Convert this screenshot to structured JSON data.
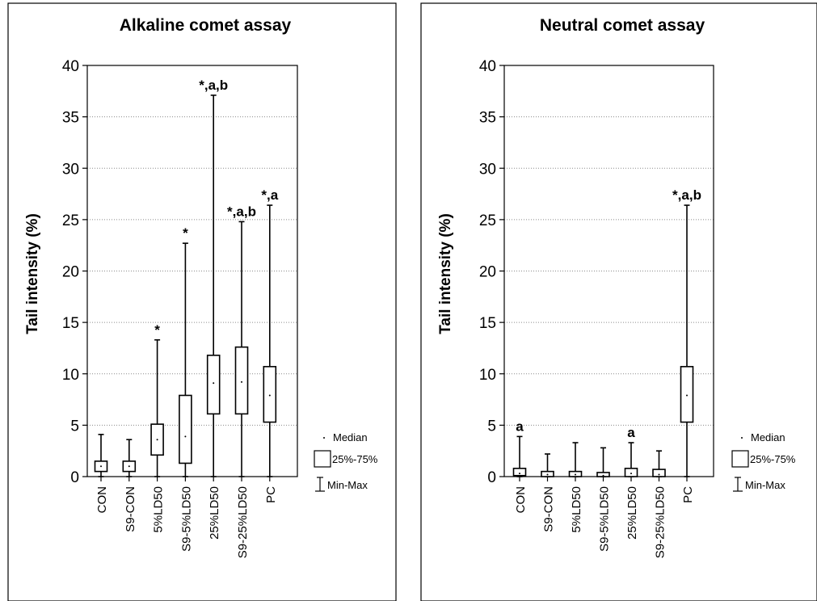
{
  "chart_data": [
    {
      "type": "box",
      "title": "Alkaline comet assay",
      "ylabel": "Tail intensity (%)",
      "ylim": [
        0,
        40
      ],
      "yticks": [
        0,
        5,
        10,
        15,
        20,
        25,
        30,
        35,
        40
      ],
      "grid": true,
      "categories": [
        "CON",
        "S9-CON",
        "5%LD50",
        "S9-5%LD50",
        "25%LD50",
        "S9-25%LD50",
        "PC"
      ],
      "boxes": [
        {
          "min": 0.0,
          "q1": 0.5,
          "median": 1.0,
          "q3": 1.5,
          "max": 4.1
        },
        {
          "min": 0.0,
          "q1": 0.5,
          "median": 1.0,
          "q3": 1.5,
          "max": 3.6
        },
        {
          "min": 0.0,
          "q1": 2.1,
          "median": 3.6,
          "q3": 5.1,
          "max": 13.3
        },
        {
          "min": 0.0,
          "q1": 1.3,
          "median": 3.9,
          "q3": 7.9,
          "max": 22.7
        },
        {
          "min": 0.0,
          "q1": 6.1,
          "median": 9.1,
          "q3": 11.8,
          "max": 37.1
        },
        {
          "min": 0.0,
          "q1": 6.1,
          "median": 9.2,
          "q3": 12.6,
          "max": 24.8
        },
        {
          "min": 0.0,
          "q1": 5.3,
          "median": 7.9,
          "q3": 10.7,
          "max": 26.4
        }
      ],
      "annotations": [
        "",
        "",
        "*",
        "*",
        "*,a,b",
        "*,a,b",
        "*,a"
      ]
    },
    {
      "type": "box",
      "title": "Neutral comet assay",
      "ylabel": "Tail intensity (%)",
      "ylim": [
        0,
        40
      ],
      "yticks": [
        0,
        5,
        10,
        15,
        20,
        25,
        30,
        35,
        40
      ],
      "grid": true,
      "categories": [
        "CON",
        "S9-CON",
        "5%LD50",
        "S9-5%LD50",
        "25%LD50",
        "S9-25%LD50",
        "PC"
      ],
      "boxes": [
        {
          "min": 0.0,
          "q1": 0.1,
          "median": 0.3,
          "q3": 0.8,
          "max": 3.9
        },
        {
          "min": 0.0,
          "q1": 0.0,
          "median": 0.2,
          "q3": 0.5,
          "max": 2.2
        },
        {
          "min": 0.0,
          "q1": 0.0,
          "median": 0.2,
          "q3": 0.5,
          "max": 3.3
        },
        {
          "min": 0.0,
          "q1": 0.0,
          "median": 0.1,
          "q3": 0.4,
          "max": 2.8
        },
        {
          "min": 0.0,
          "q1": 0.0,
          "median": 0.3,
          "q3": 0.8,
          "max": 3.3
        },
        {
          "min": 0.0,
          "q1": 0.0,
          "median": 0.2,
          "q3": 0.7,
          "max": 2.5
        },
        {
          "min": 0.0,
          "q1": 5.3,
          "median": 7.9,
          "q3": 10.7,
          "max": 26.4
        }
      ],
      "annotations": [
        "a",
        "",
        "",
        "",
        "a",
        "",
        "*,a,b"
      ]
    }
  ],
  "legend": {
    "median": "Median",
    "box": "25%-75%",
    "whisker": "Min-Max"
  }
}
